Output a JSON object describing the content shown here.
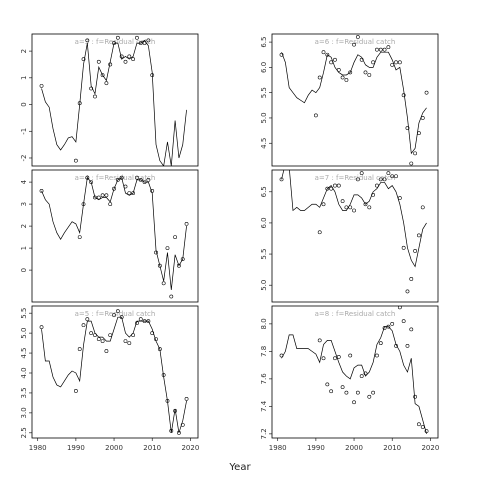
{
  "xlabel": "Year",
  "chart_data": [
    {
      "type": "line",
      "title": "a=3 : f=Residual catch",
      "x": [
        1981,
        1982,
        1983,
        1984,
        1985,
        1986,
        1987,
        1988,
        1989,
        1990,
        1991,
        1992,
        1993,
        1994,
        1995,
        1996,
        1997,
        1998,
        1999,
        2000,
        2001,
        2002,
        2003,
        2004,
        2005,
        2006,
        2007,
        2008,
        2009,
        2010,
        2011,
        2012,
        2013,
        2014,
        2015,
        2016,
        2017,
        2018,
        2019
      ],
      "xlim": [
        1978.5,
        2022
      ],
      "ylim": [
        -2.3,
        2.64
      ],
      "yticks": [
        -2,
        -1,
        0,
        1,
        2
      ],
      "series": [
        {
          "marker": "circle",
          "color": "#000000",
          "values": [
            0.7,
            null,
            null,
            null,
            null,
            null,
            null,
            null,
            null,
            -2.1,
            0.05,
            1.7,
            2.4,
            0.6,
            0.3,
            1.6,
            1.1,
            0.8,
            1.5,
            2.3,
            2.5,
            1.8,
            1.6,
            1.8,
            1.7,
            2.5,
            2.3,
            2.3,
            2.4,
            1.1,
            null,
            null,
            null,
            null,
            null,
            null,
            null,
            null,
            null
          ]
        },
        {
          "marker": "none",
          "color": "#000000",
          "values": [
            0.6,
            0.1,
            -0.1,
            -0.9,
            -1.5,
            -1.7,
            -1.5,
            -1.25,
            -1.2,
            -1.4,
            0.0,
            1.5,
            2.3,
            0.7,
            0.4,
            1.4,
            1.1,
            0.9,
            1.6,
            2.3,
            2.3,
            1.7,
            1.8,
            1.7,
            1.8,
            2.3,
            2.3,
            2.4,
            2.2,
            1.2,
            -1.5,
            -2.1,
            -2.3,
            -1.4,
            -2.3,
            -0.6,
            -2.0,
            -1.5,
            -0.2
          ]
        }
      ]
    },
    {
      "type": "line",
      "title": "a=4 : f=Residual catch",
      "x": [
        1981,
        1982,
        1983,
        1984,
        1985,
        1986,
        1987,
        1988,
        1989,
        1990,
        1991,
        1992,
        1993,
        1994,
        1995,
        1996,
        1997,
        1998,
        1999,
        2000,
        2001,
        2002,
        2003,
        2004,
        2005,
        2006,
        2007,
        2008,
        2009,
        2010,
        2011,
        2012,
        2013,
        2014,
        2015,
        2016,
        2017,
        2018,
        2019
      ],
      "xlim": [
        1978.5,
        2022
      ],
      "ylim": [
        -1.45,
        4.55
      ],
      "yticks": [
        0,
        1,
        2,
        3,
        4
      ],
      "series": [
        {
          "marker": "circle",
          "color": "#000000",
          "values": [
            3.6,
            null,
            null,
            null,
            null,
            null,
            null,
            null,
            null,
            null,
            1.5,
            3.0,
            4.2,
            4.0,
            3.3,
            3.3,
            3.4,
            3.4,
            3.0,
            3.7,
            4.1,
            4.2,
            3.8,
            3.5,
            3.5,
            4.2,
            4.1,
            4.0,
            4.1,
            3.6,
            0.8,
            0.2,
            -0.6,
            1.0,
            -1.2,
            1.5,
            0.2,
            0.5,
            2.1
          ]
        },
        {
          "marker": "none",
          "color": "#000000",
          "values": [
            3.6,
            3.2,
            3.0,
            2.2,
            1.7,
            1.4,
            1.7,
            1.95,
            2.2,
            2.1,
            1.7,
            3.0,
            4.2,
            4.0,
            3.3,
            3.2,
            3.3,
            3.3,
            3.1,
            3.7,
            4.1,
            4.2,
            3.5,
            3.4,
            3.5,
            4.1,
            4.1,
            4.0,
            4.0,
            3.5,
            0.9,
            0.2,
            -0.5,
            0.8,
            -0.9,
            0.7,
            0.2,
            0.5,
            2.0
          ]
        }
      ]
    },
    {
      "type": "line",
      "title": "a=5 : f=Residual catch",
      "x": [
        1981,
        1982,
        1983,
        1984,
        1985,
        1986,
        1987,
        1988,
        1989,
        1990,
        1991,
        1992,
        1993,
        1994,
        1995,
        1996,
        1997,
        1998,
        1999,
        2000,
        2001,
        2002,
        2003,
        2004,
        2005,
        2006,
        2007,
        2008,
        2009,
        2010,
        2011,
        2012,
        2013,
        2014,
        2015,
        2016,
        2017,
        2018,
        2019
      ],
      "xlim": [
        1978.5,
        2022
      ],
      "xticks": [
        1980,
        1990,
        2000,
        2010,
        2020
      ],
      "ylim": [
        2.37,
        5.68
      ],
      "yticks": [
        2.5,
        {
          "value": 3,
          "label": "3.0"
        },
        3.5,
        {
          "value": 4,
          "label": "4.0"
        },
        4.5,
        {
          "value": 5,
          "label": "5.0"
        },
        5.5
      ],
      "series": [
        {
          "marker": "circle",
          "color": "#000000",
          "values": [
            5.15,
            null,
            null,
            null,
            null,
            null,
            null,
            null,
            null,
            3.55,
            4.6,
            5.2,
            5.35,
            5.0,
            4.95,
            4.85,
            4.8,
            4.55,
            4.95,
            5.45,
            5.55,
            5.4,
            4.8,
            4.75,
            4.95,
            5.25,
            5.35,
            5.3,
            5.3,
            5.0,
            4.85,
            4.6,
            3.95,
            3.3,
            2.55,
            3.05,
            2.5,
            2.7,
            3.35
          ]
        },
        {
          "marker": "none",
          "color": "#000000",
          "values": [
            5.1,
            4.3,
            4.3,
            3.9,
            3.7,
            3.65,
            3.8,
            3.95,
            4.05,
            4.0,
            3.8,
            4.7,
            5.3,
            5.3,
            5.0,
            4.9,
            4.9,
            4.8,
            4.8,
            5.1,
            5.4,
            5.4,
            5.0,
            4.9,
            5.0,
            5.3,
            5.3,
            5.3,
            5.3,
            5.1,
            4.8,
            4.6,
            3.9,
            3.3,
            2.5,
            3.1,
            2.5,
            2.8,
            3.3
          ]
        }
      ]
    },
    {
      "type": "line",
      "title": "a=6 : f=Residual catch",
      "x": [
        1981,
        1982,
        1983,
        1984,
        1985,
        1986,
        1987,
        1988,
        1989,
        1990,
        1991,
        1992,
        1993,
        1994,
        1995,
        1996,
        1997,
        1998,
        1999,
        2000,
        2001,
        2002,
        2003,
        2004,
        2005,
        2006,
        2007,
        2008,
        2009,
        2010,
        2011,
        2012,
        2013,
        2014,
        2015,
        2016,
        2017,
        2018,
        2019
      ],
      "xlim": [
        1978.5,
        2022
      ],
      "ylim": [
        4.05,
        6.66
      ],
      "yticks": [
        4.5,
        {
          "value": 5,
          "label": "5.0"
        },
        5.5,
        {
          "value": 6,
          "label": "6.0"
        },
        6.5
      ],
      "series": [
        {
          "marker": "circle",
          "color": "#000000",
          "values": [
            6.25,
            null,
            null,
            null,
            null,
            null,
            null,
            null,
            null,
            5.05,
            5.8,
            6.3,
            6.25,
            6.1,
            6.15,
            5.95,
            5.8,
            5.75,
            5.9,
            6.45,
            6.6,
            6.15,
            5.9,
            5.85,
            6.1,
            6.35,
            6.35,
            6.35,
            6.4,
            6.05,
            6.1,
            6.1,
            5.45,
            4.8,
            4.1,
            4.3,
            4.7,
            5.0,
            5.5
          ]
        },
        {
          "marker": "none",
          "color": "#000000",
          "values": [
            6.3,
            6.1,
            5.6,
            5.5,
            5.4,
            5.35,
            5.3,
            5.45,
            5.55,
            5.5,
            5.6,
            5.9,
            6.25,
            6.2,
            6.0,
            5.9,
            5.85,
            5.85,
            5.9,
            6.1,
            6.25,
            6.2,
            6.05,
            6.0,
            6.0,
            6.2,
            6.3,
            6.3,
            6.3,
            6.15,
            5.95,
            6.0,
            5.55,
            5.0,
            4.3,
            4.4,
            4.9,
            5.1,
            5.2
          ]
        }
      ]
    },
    {
      "type": "line",
      "title": "a=7 : f=Residual catch",
      "x": [
        1981,
        1982,
        1983,
        1984,
        1985,
        1986,
        1987,
        1988,
        1989,
        1990,
        1991,
        1992,
        1993,
        1994,
        1995,
        1996,
        1997,
        1998,
        1999,
        2000,
        2001,
        2002,
        2003,
        2004,
        2005,
        2006,
        2007,
        2008,
        2009,
        2010,
        2011,
        2012,
        2013,
        2014,
        2015,
        2016,
        2017,
        2018,
        2019
      ],
      "xlim": [
        1978.5,
        2022
      ],
      "ylim": [
        4.73,
        6.85
      ],
      "yticks": [
        {
          "value": 5,
          "label": "5.0"
        },
        5.5,
        {
          "value": 6,
          "label": "6.0"
        },
        6.5
      ],
      "series": [
        {
          "marker": "circle",
          "color": "#000000",
          "values": [
            6.7,
            null,
            null,
            null,
            null,
            null,
            null,
            null,
            null,
            null,
            5.85,
            6.3,
            6.55,
            6.55,
            6.6,
            6.6,
            6.35,
            6.25,
            6.25,
            6.2,
            6.7,
            6.8,
            6.3,
            6.25,
            6.45,
            6.6,
            6.7,
            6.7,
            6.8,
            6.75,
            6.75,
            6.4,
            5.6,
            4.9,
            5.1,
            5.55,
            5.8,
            6.25,
            null
          ]
        },
        {
          "marker": "none",
          "color": "#000000",
          "values": [
            6.7,
            6.95,
            6.9,
            6.2,
            6.25,
            6.2,
            6.2,
            6.25,
            6.3,
            6.3,
            6.25,
            6.4,
            6.55,
            6.6,
            6.5,
            6.3,
            6.2,
            6.2,
            6.3,
            6.45,
            6.45,
            6.4,
            6.3,
            6.35,
            6.5,
            6.55,
            6.65,
            6.65,
            6.55,
            6.6,
            6.5,
            6.3,
            6.0,
            5.6,
            5.4,
            5.3,
            5.6,
            5.9,
            6.0
          ]
        }
      ]
    },
    {
      "type": "line",
      "title": "a=8 : f=Residual catch",
      "x": [
        1981,
        1982,
        1983,
        1984,
        1985,
        1986,
        1987,
        1988,
        1989,
        1990,
        1991,
        1992,
        1993,
        1994,
        1995,
        1996,
        1997,
        1998,
        1999,
        2000,
        2001,
        2002,
        2003,
        2004,
        2005,
        2006,
        2007,
        2008,
        2009,
        2010,
        2011,
        2012,
        2013,
        2014,
        2015,
        2016,
        2017,
        2018,
        2019
      ],
      "xlim": [
        1978.5,
        2022
      ],
      "xticks": [
        1980,
        1990,
        2000,
        2010,
        2020
      ],
      "ylim": [
        7.17,
        8.13
      ],
      "yticks": [
        7.2,
        7.4,
        7.6,
        7.8,
        {
          "value": 8,
          "label": "8.0"
        }
      ],
      "series": [
        {
          "marker": "circle",
          "color": "#000000",
          "values": [
            7.77,
            null,
            null,
            null,
            null,
            null,
            null,
            null,
            null,
            null,
            7.88,
            7.75,
            7.56,
            7.51,
            7.75,
            7.76,
            7.54,
            7.5,
            7.77,
            7.43,
            7.5,
            7.62,
            7.64,
            7.47,
            7.5,
            7.77,
            7.86,
            7.97,
            7.98,
            8.0,
            7.84,
            8.12,
            8.02,
            7.84,
            7.96,
            7.47,
            7.27,
            7.25,
            7.22
          ]
        },
        {
          "marker": "none",
          "color": "#000000",
          "values": [
            7.75,
            7.8,
            7.92,
            7.92,
            7.82,
            7.82,
            7.82,
            7.82,
            7.8,
            7.78,
            7.72,
            7.85,
            7.88,
            7.88,
            7.8,
            7.72,
            7.65,
            7.62,
            7.6,
            7.68,
            7.7,
            7.7,
            7.62,
            7.65,
            7.72,
            7.85,
            7.9,
            7.98,
            7.98,
            7.95,
            7.85,
            7.8,
            7.7,
            7.65,
            7.75,
            7.42,
            7.4,
            7.3,
            7.2
          ]
        }
      ]
    }
  ]
}
